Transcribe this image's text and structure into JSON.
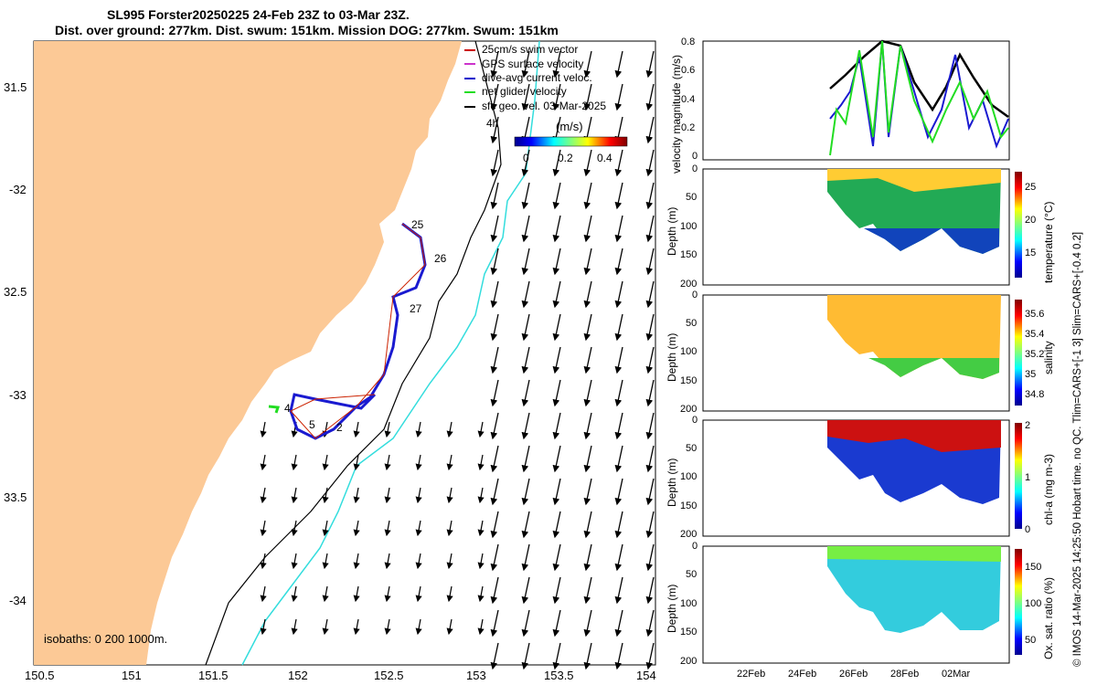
{
  "title_line1": "SL995 Forster20250225 24-Feb 23Z to 03-Mar 23Z.",
  "title_line2": "Dist. over ground: 277km. Dist. swum: 151km. Mission DOG: 277km. Swum: 151km",
  "map": {
    "lon_ticks": [
      "150.5",
      "151",
      "151.5",
      "152",
      "152.5",
      "153",
      "153.5",
      "154"
    ],
    "lat_ticks": [
      "31.5",
      "-32",
      "32.5",
      "-33",
      "33.5",
      "-34"
    ],
    "legend": [
      {
        "label": "25cm/s swim vector",
        "color": "#cc0000"
      },
      {
        "label": "GPS surface velocity",
        "color": "#cc33cc"
      },
      {
        "label": "dive-avg current veloc.",
        "color": "#0000cc"
      },
      {
        "label": "net glider velocity",
        "color": "#22dd22"
      },
      {
        "label": "sfc geo. vel. 03-Mar-2025",
        "color": "#000000"
      }
    ],
    "arrow_label": "4h",
    "colorbar_unit": "(m/s)",
    "colorbar_ticks": [
      "0",
      "0.2",
      "0.4"
    ],
    "day_labels": [
      "25",
      "26",
      "27",
      "4",
      "5",
      "2"
    ],
    "isobaths": "isobaths: 0   200  1000m.",
    "land_color": "#fcc996",
    "shelf_color": "#33dddd"
  },
  "panels": {
    "velocity": {
      "ylabel": "velocity magnitude (m/s)",
      "yticks": [
        "0.8",
        "0.6",
        "0.4",
        "0.2",
        "0"
      ]
    },
    "temperature": {
      "ylabel": "Depth (m)",
      "cblabel": "temperature (°C)",
      "yticks": [
        "0",
        "50",
        "100",
        "150",
        "200"
      ],
      "cbticks": [
        "25",
        "20",
        "15"
      ]
    },
    "salinity": {
      "ylabel": "Depth (m)",
      "cblabel": "salinity",
      "yticks": [
        "0",
        "50",
        "100",
        "150",
        "200"
      ],
      "cbticks": [
        "35.6",
        "35.4",
        "35.2",
        "35",
        "34.8"
      ]
    },
    "chla": {
      "ylabel": "Depth (m)",
      "cblabel": "chl-a (mg m-3)",
      "yticks": [
        "0",
        "50",
        "100",
        "150",
        "200"
      ],
      "cbticks": [
        "2",
        "1",
        "0"
      ]
    },
    "oxygen": {
      "ylabel": "Depth (m)",
      "cblabel": "Ox. sat. ratio (%)",
      "yticks": [
        "0",
        "50",
        "100",
        "150",
        "200"
      ],
      "cbticks": [
        "150",
        "100",
        "50"
      ]
    }
  },
  "time_ticks": [
    "22Feb",
    "24Feb",
    "26Feb",
    "28Feb",
    "02Mar"
  ],
  "footer": "© IMOS 14-Mar-2025 14:25:50 Hobart time. no QC. Tlim=CARS+[-1 3] Slim=CARS+[-0.4 0.2]"
}
